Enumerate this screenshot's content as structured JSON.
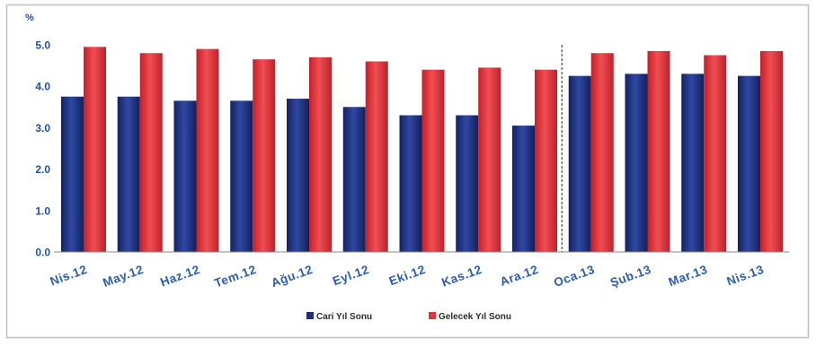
{
  "chart_data": {
    "type": "bar",
    "categories": [
      "Nis.12",
      "May.12",
      "Haz.12",
      "Tem.12",
      "Ağu.12",
      "Eyl.12",
      "Eki.12",
      "Kas.12",
      "Ara.12",
      "Oca.13",
      "Şub.13",
      "Mar.13",
      "Nis.13"
    ],
    "series": [
      {
        "name": "Cari Yıl Sonu",
        "color": "#1c2f7e",
        "values": [
          3.75,
          3.75,
          3.65,
          3.65,
          3.7,
          3.5,
          3.3,
          3.3,
          3.05,
          4.25,
          4.3,
          4.3,
          4.25
        ]
      },
      {
        "name": "Gelecek Yıl Sonu",
        "color": "#e0343b",
        "values": [
          4.95,
          4.8,
          4.9,
          4.65,
          4.7,
          4.6,
          4.4,
          4.45,
          4.4,
          4.8,
          4.85,
          4.75,
          4.85
        ]
      }
    ],
    "ylabel": "%",
    "ylim": [
      0,
      5
    ],
    "yticks": [
      "0.0",
      "1.0",
      "2.0",
      "3.0",
      "4.0",
      "5.0"
    ],
    "grid": false,
    "legend": "bottom",
    "divider_after_index": 8
  }
}
